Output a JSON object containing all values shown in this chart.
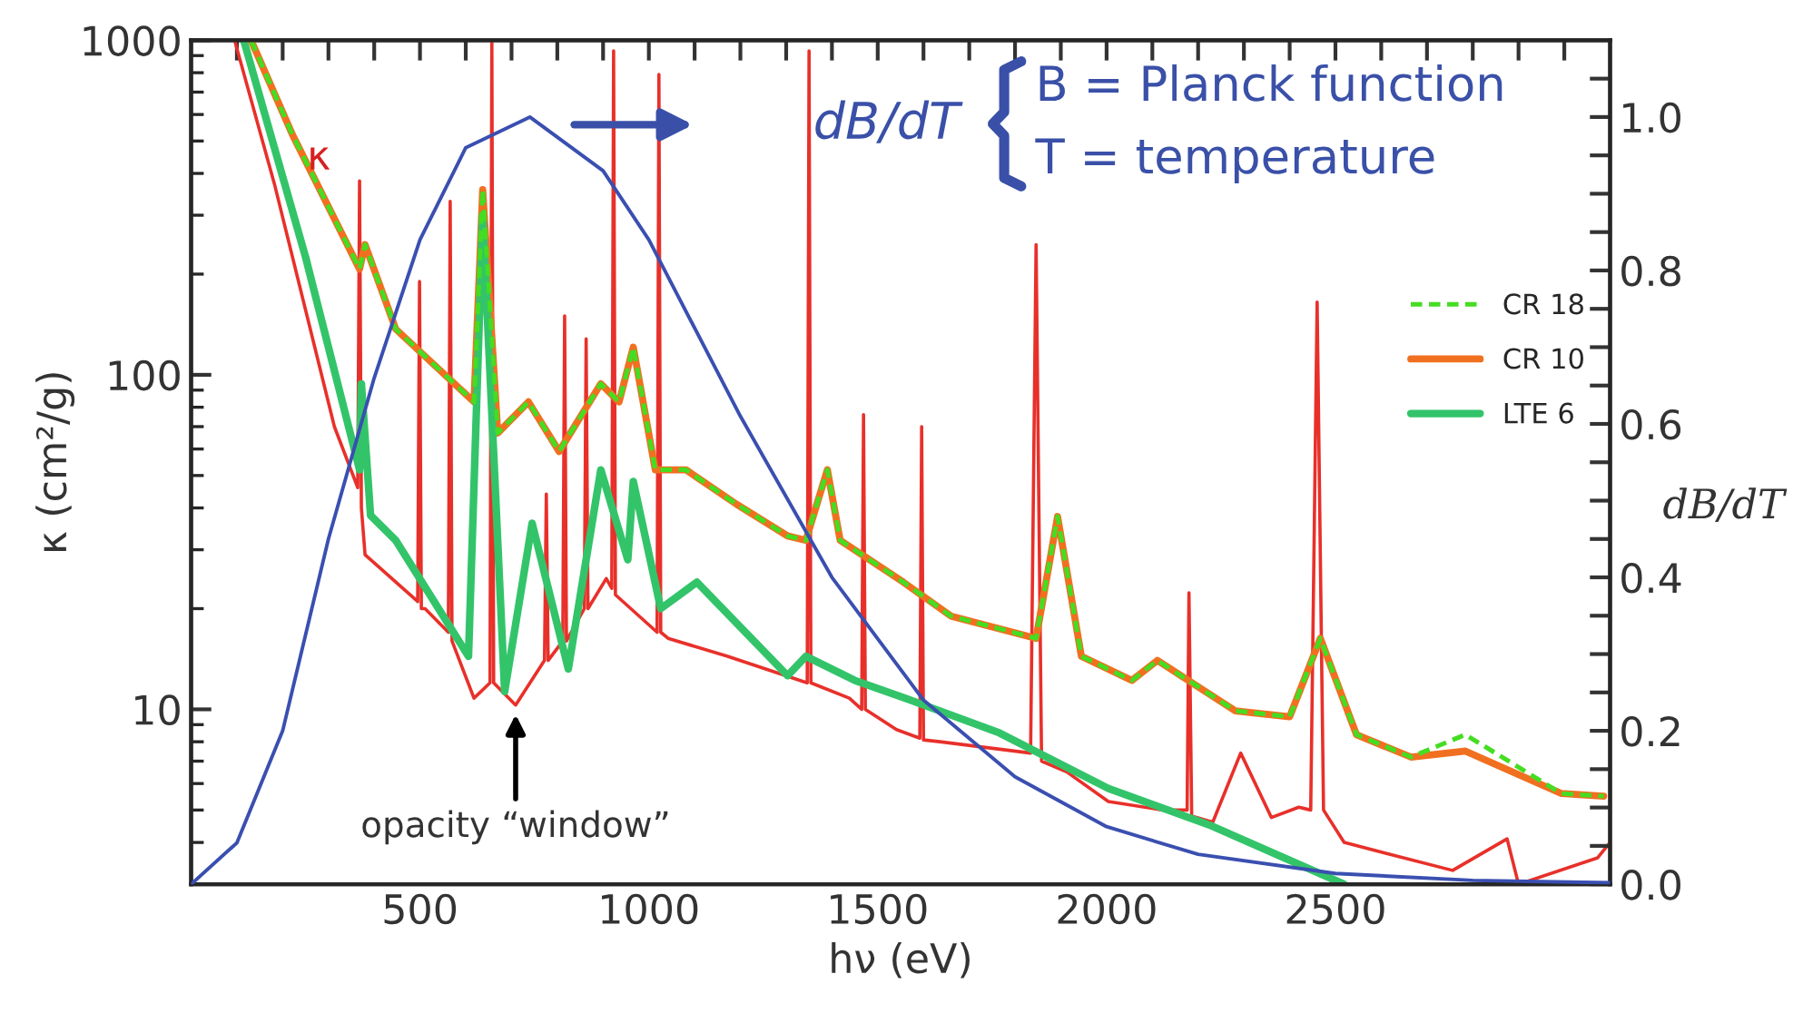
{
  "chart_data": {
    "type": "line",
    "xlabel": "hν (eV)",
    "ylabel": "κ (cm²/g)",
    "y2label": "dB/dT",
    "log": "y",
    "grid": false,
    "legend": "right",
    "xlim": [
      0,
      3100
    ],
    "ylim": [
      3,
      1000
    ],
    "y2lim": [
      0,
      1.1
    ],
    "xticks": [
      {
        "value": 100,
        "label": null
      },
      {
        "value": 200,
        "label": null
      },
      {
        "value": 300,
        "label": null
      },
      {
        "value": 400,
        "label": null
      },
      500,
      {
        "value": 600,
        "label": null
      },
      {
        "value": 700,
        "label": null
      },
      {
        "value": 800,
        "label": null
      },
      {
        "value": 900,
        "label": null
      },
      1000,
      {
        "value": 1100,
        "label": null
      },
      {
        "value": 1200,
        "label": null
      },
      {
        "value": 1300,
        "label": null
      },
      {
        "value": 1400,
        "label": null
      },
      1500,
      {
        "value": 1600,
        "label": null
      },
      {
        "value": 1700,
        "label": null
      },
      {
        "value": 1800,
        "label": null
      },
      {
        "value": 1900,
        "label": null
      },
      2000,
      {
        "value": 2100,
        "label": null
      },
      {
        "value": 2200,
        "label": null
      },
      {
        "value": 2300,
        "label": null
      },
      {
        "value": 2400,
        "label": null
      },
      2500,
      {
        "value": 2600,
        "label": null
      },
      {
        "value": 2700,
        "label": null
      },
      {
        "value": 2800,
        "label": null
      },
      {
        "value": 2900,
        "label": null
      },
      {
        "value": 3000,
        "label": null
      }
    ],
    "yticks": [
      10,
      100,
      1000
    ],
    "y2ticks": [
      {
        "value": 0,
        "label": "0.0"
      },
      {
        "value": 0.05,
        "label": null
      },
      {
        "value": 0.1,
        "label": null
      },
      {
        "value": 0.15,
        "label": null
      },
      {
        "value": 0.2,
        "label": "0.2"
      },
      {
        "value": 0.25,
        "label": null
      },
      {
        "value": 0.3,
        "label": null
      },
      {
        "value": 0.35,
        "label": null
      },
      {
        "value": 0.4,
        "label": "0.4"
      },
      {
        "value": 0.45,
        "label": null
      },
      {
        "value": 0.5,
        "label": null
      },
      {
        "value": 0.55,
        "label": null
      },
      {
        "value": 0.6,
        "label": "0.6"
      },
      {
        "value": 0.65,
        "label": null
      },
      {
        "value": 0.7,
        "label": null
      },
      {
        "value": 0.75,
        "label": null
      },
      {
        "value": 0.8,
        "label": "0.8"
      },
      {
        "value": 0.85,
        "label": null
      },
      {
        "value": 0.9,
        "label": null
      },
      {
        "value": 0.95,
        "label": null
      },
      {
        "value": 1.0,
        "label": "1.0"
      },
      {
        "value": 1.05,
        "label": null
      }
    ],
    "series": [
      {
        "color": "#e8302a",
        "line_style": "solid",
        "x": [
          95,
          182,
          313,
          364,
          368,
          372,
          380,
          495,
          499,
          503,
          511,
          562,
          566,
          570,
          618,
          653,
          657,
          661,
          709,
          772,
          776,
          780,
          812,
          816,
          820,
          859,
          863,
          867,
          907,
          919,
          923,
          927,
          1018,
          1022,
          1026,
          1042,
          1172,
          1346,
          1350,
          1354,
          1438,
          1465,
          1469,
          1473,
          1541,
          1592,
          1596,
          1600,
          1636,
          1834,
          1846,
          1858,
          1913,
          2004,
          2123,
          2176,
          2180,
          2186,
          2232,
          2293,
          2360,
          2420,
          2446,
          2460,
          2474,
          2519,
          2756,
          2875,
          2900,
          3073,
          3100
        ],
        "values": [
          1000,
          372,
          70,
          46,
          380,
          40,
          29,
          21,
          190,
          20,
          20,
          17,
          330,
          16,
          10.8,
          12,
          1000,
          12,
          10.3,
          14,
          44,
          14,
          16,
          150,
          16,
          20,
          128,
          20,
          24.6,
          23,
          930,
          22,
          17,
          790,
          17,
          16.3,
          14.4,
          12,
          930,
          12,
          10.8,
          10,
          76,
          10,
          8.7,
          8.2,
          70,
          8.1,
          8.0,
          7.4,
          245,
          7.0,
          6.5,
          5.3,
          5.0,
          5,
          22.3,
          4.8,
          4.6,
          7.4,
          4.75,
          5.1,
          5,
          165,
          5,
          4.0,
          3.3,
          4.1,
          3,
          3.6,
          4
        ]
      },
      {
        "name": "CR 18",
        "color": "#44dd22",
        "line_style": "dashed",
        "x": [
          131,
          222,
          368,
          380,
          447,
          618,
          637,
          670,
          737,
          804,
          895,
          935,
          966,
          1014,
          1081,
          1192,
          1303,
          1343,
          1390,
          1418,
          1556,
          1660,
          1846,
          1893,
          1945,
          2055,
          2111,
          2281,
          2400,
          2467,
          2546,
          2665,
          2784,
          2994,
          3086
        ],
        "values": [
          1000,
          520,
          207,
          245,
          137,
          83,
          358,
          67,
          83,
          59,
          94,
          83,
          121,
          52,
          52,
          41,
          33,
          32,
          52,
          32,
          24,
          19,
          16.3,
          37.7,
          14.4,
          12.2,
          14.0,
          9.9,
          9.5,
          16.3,
          8.4,
          7.2,
          8.4,
          5.6,
          5.5
        ]
      },
      {
        "name": "CR 10",
        "color": "#f07020",
        "line_style": "solid",
        "x": [
          131,
          222,
          368,
          380,
          447,
          618,
          637,
          670,
          737,
          804,
          895,
          935,
          966,
          1014,
          1081,
          1192,
          1303,
          1343,
          1390,
          1418,
          1556,
          1660,
          1846,
          1893,
          1945,
          2055,
          2111,
          2281,
          2400,
          2467,
          2546,
          2665,
          2784,
          2994,
          3086
        ],
        "values": [
          1000,
          520,
          207,
          245,
          137,
          83,
          358,
          67,
          83,
          59,
          94,
          83,
          121,
          52,
          52,
          41,
          33,
          32,
          52,
          32,
          24,
          19,
          16.3,
          37.7,
          14.4,
          12.2,
          14.0,
          9.9,
          9.5,
          16.3,
          8.4,
          7.2,
          7.5,
          5.6,
          5.5
        ]
      },
      {
        "name": "LTE 6",
        "color": "#33c46a",
        "line_style": "solid",
        "x": [
          115,
          250,
          368,
          372,
          392,
          447,
          606,
          637,
          685,
          745,
          824,
          895,
          954,
          966,
          1026,
          1105,
          1303,
          1343,
          1450,
          1568,
          1766,
          2004,
          2230,
          2519
        ],
        "values": [
          1000,
          225,
          52,
          94,
          38,
          32,
          14.4,
          300,
          11.3,
          36,
          13.2,
          52,
          28,
          48,
          20,
          24,
          12.6,
          14.4,
          12.2,
          10.7,
          8.5,
          5.8,
          4.48,
          3
        ]
      },
      {
        "color": "#3a4fb0",
        "line_style": "solid",
        "axis": "y2",
        "x": [
          0,
          100,
          200,
          300,
          400,
          500,
          600,
          740,
          900,
          1000,
          1200,
          1400,
          1600,
          1800,
          2000,
          2200,
          2500,
          2800,
          3100
        ],
        "values": [
          0,
          0.054,
          0.2,
          0.45,
          0.66,
          0.84,
          0.96,
          1.0,
          0.93,
          0.84,
          0.61,
          0.4,
          0.24,
          0.14,
          0.075,
          0.039,
          0.014,
          0.005,
          0.002
        ]
      }
    ],
    "annotations": [
      "κ",
      {
        "text": "opacity “window”",
        "x": 709,
        "y": 10
      },
      "dB/dT",
      "B = Planck function",
      "T = temperature"
    ]
  }
}
